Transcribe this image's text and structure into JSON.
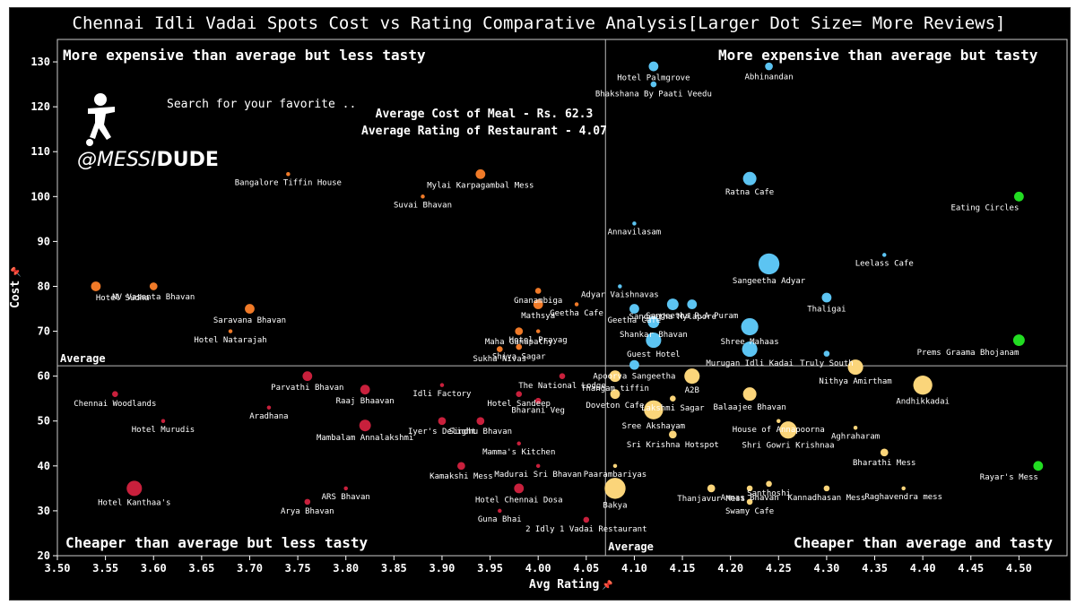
{
  "title": "Chennai Idli Vadai Spots Cost vs Rating Comparative Analysis[Larger Dot Size= More Reviews]",
  "branding": {
    "search_text": "Search for your favorite ..",
    "handle_prefix": "@MESSI",
    "handle_suffix": "DUDE"
  },
  "averages": {
    "cost_text": "Average Cost of Meal - Rs. 62.3",
    "rating_text": "Average Rating of Restaurant - 4.07",
    "avg_y_label": "Average",
    "avg_x_label": "Average"
  },
  "quadrants": {
    "top_left": "More expensive than average but less tasty",
    "top_right": "More expensive than average but tasty",
    "bottom_left": "Cheaper than average but less tasty",
    "bottom_right": "Cheaper than average and tasty"
  },
  "colors": {
    "top_left": "#f07a28",
    "top_right": "#5cc4f2",
    "bottom_left": "#c8203c",
    "bottom_right": "#fbd57a",
    "outlier": "#22dd22"
  },
  "chart_data": {
    "type": "scatter",
    "title": "Chennai Idli Vadai Spots Cost vs Rating Comparative Analysis[Larger Dot Size= More Reviews]",
    "xlabel": "Avg Rating",
    "ylabel": "Cost",
    "xlim": [
      3.5,
      4.55
    ],
    "ylim": [
      20,
      135
    ],
    "xticks": [
      "3.50",
      "3.55",
      "3.60",
      "3.65",
      "3.70",
      "3.75",
      "3.80",
      "3.85",
      "3.90",
      "3.95",
      "4.00",
      "4.05",
      "4.10",
      "4.15",
      "4.20",
      "4.25",
      "4.30",
      "4.35",
      "4.40",
      "4.45",
      "4.50"
    ],
    "yticks": [
      "20",
      "30",
      "40",
      "50",
      "60",
      "70",
      "80",
      "90",
      "100",
      "110",
      "120",
      "130"
    ],
    "avg_x": 4.07,
    "avg_y": 62.3,
    "grid": false,
    "points": [
      {
        "name": "Hotel Palmgrove",
        "x": 4.12,
        "y": 129,
        "size": 4,
        "group": "top_right"
      },
      {
        "name": "Abhinandan",
        "x": 4.24,
        "y": 129,
        "size": 3,
        "group": "top_right"
      },
      {
        "name": "Bhakshana By Paati Veedu",
        "x": 4.12,
        "y": 125,
        "size": 2,
        "group": "top_right"
      },
      {
        "name": "Ratna Cafe",
        "x": 4.22,
        "y": 104,
        "size": 6,
        "group": "top_right"
      },
      {
        "name": "Annavilasam",
        "x": 4.1,
        "y": 94,
        "size": 1,
        "group": "top_right"
      },
      {
        "name": "Sangeetha Adyar",
        "x": 4.24,
        "y": 85,
        "size": 10,
        "group": "top_right"
      },
      {
        "name": "Leelass Cafe",
        "x": 4.36,
        "y": 87,
        "size": 1,
        "group": "top_right"
      },
      {
        "name": "Adyar Vaishnavas",
        "x": 4.085,
        "y": 80,
        "size": 1,
        "group": "top_right"
      },
      {
        "name": "Thaligai",
        "x": 4.3,
        "y": 77.5,
        "size": 4,
        "group": "top_right"
      },
      {
        "name": "Sangeetha Mylapore",
        "x": 4.14,
        "y": 76,
        "size": 5,
        "group": "top_right"
      },
      {
        "name": "Sangeetha R.A Puram",
        "x": 4.16,
        "y": 76,
        "size": 4,
        "group": "top_right"
      },
      {
        "name": "Geetha Cafe",
        "x": 4.1,
        "y": 75,
        "size": 4,
        "group": "top_right"
      },
      {
        "name": "Shankar Bhavan",
        "x": 4.12,
        "y": 72,
        "size": 5,
        "group": "top_right"
      },
      {
        "name": "Shree Mahaas",
        "x": 4.22,
        "y": 71,
        "size": 8,
        "group": "top_right"
      },
      {
        "name": "Guest Hotel",
        "x": 4.12,
        "y": 68,
        "size": 7,
        "group": "top_right"
      },
      {
        "name": "Truly South",
        "x": 4.3,
        "y": 65,
        "size": 2,
        "group": "top_right"
      },
      {
        "name": "Murugan Idli Kadai",
        "x": 4.22,
        "y": 66,
        "size": 7,
        "group": "top_right"
      },
      {
        "name": "Apoorva Sangeetha",
        "x": 4.1,
        "y": 62.5,
        "size": 4,
        "group": "top_right"
      },
      {
        "name": "Eating Circles",
        "x": 4.5,
        "y": 100,
        "size": 4,
        "group": "outlier"
      },
      {
        "name": "Prems Graama Bhojanam",
        "x": 4.5,
        "y": 68,
        "size": 5,
        "group": "outlier"
      },
      {
        "name": "Rayar's Mess",
        "x": 4.52,
        "y": 40,
        "size": 4,
        "group": "outlier"
      },
      {
        "name": "Mylai Karpagambal Mess",
        "x": 3.94,
        "y": 105,
        "size": 4,
        "group": "top_left"
      },
      {
        "name": "Bangalore Tiffin House",
        "x": 3.74,
        "y": 105,
        "size": 1,
        "group": "top_left"
      },
      {
        "name": "Suvai Bhavan",
        "x": 3.88,
        "y": 100,
        "size": 1,
        "group": "top_left"
      },
      {
        "name": "Hotel Sudha",
        "x": 3.54,
        "y": 80,
        "size": 4,
        "group": "top_left"
      },
      {
        "name": "NV Vasanta Bhavan",
        "x": 3.6,
        "y": 80,
        "size": 3,
        "group": "top_left"
      },
      {
        "name": "Saravana Bhavan",
        "x": 3.7,
        "y": 75,
        "size": 4,
        "group": "top_left"
      },
      {
        "name": "Hotel Natarajah",
        "x": 3.68,
        "y": 70,
        "size": 1,
        "group": "top_left"
      },
      {
        "name": "Gnanambiga",
        "x": 4.0,
        "y": 79,
        "size": 2,
        "group": "top_left"
      },
      {
        "name": "Mathsya",
        "x": 4.0,
        "y": 76,
        "size": 4,
        "group": "top_left"
      },
      {
        "name": "Geetha Cafe",
        "x": 4.04,
        "y": 76,
        "size": 1,
        "group": "top_left"
      },
      {
        "name": "Maha Ganapathy",
        "x": 3.98,
        "y": 70,
        "size": 3,
        "group": "top_left"
      },
      {
        "name": "Hotel Prayag",
        "x": 4.0,
        "y": 70,
        "size": 1,
        "group": "top_left"
      },
      {
        "name": "Shiva Sagar",
        "x": 3.98,
        "y": 66.5,
        "size": 2,
        "group": "top_left"
      },
      {
        "name": "Sukha Nivas",
        "x": 3.96,
        "y": 66,
        "size": 2,
        "group": "top_left"
      },
      {
        "name": "Parvathi Bhavan",
        "x": 3.76,
        "y": 60,
        "size": 4,
        "group": "bottom_left"
      },
      {
        "name": "Chennai Woodlands",
        "x": 3.56,
        "y": 56,
        "size": 2,
        "group": "bottom_left"
      },
      {
        "name": "Raaj Bhaavan",
        "x": 3.82,
        "y": 57,
        "size": 4,
        "group": "bottom_left"
      },
      {
        "name": "Idli Factory",
        "x": 3.9,
        "y": 58,
        "size": 1,
        "group": "bottom_left"
      },
      {
        "name": "Hotel Sandeep",
        "x": 3.98,
        "y": 56,
        "size": 2,
        "group": "bottom_left"
      },
      {
        "name": "The National Lodge",
        "x": 4.025,
        "y": 60,
        "size": 2,
        "group": "bottom_left"
      },
      {
        "name": "Aradhana",
        "x": 3.72,
        "y": 53,
        "size": 1,
        "group": "bottom_left"
      },
      {
        "name": "Bharani Veg",
        "x": 4.0,
        "y": 54.5,
        "size": 2,
        "group": "bottom_left"
      },
      {
        "name": "Hotel Murudis",
        "x": 3.61,
        "y": 50,
        "size": 1,
        "group": "bottom_left"
      },
      {
        "name": "Sindhu Bhavan",
        "x": 3.94,
        "y": 50,
        "size": 3,
        "group": "bottom_left"
      },
      {
        "name": "Mambalam Annalakshmi",
        "x": 3.82,
        "y": 49,
        "size": 5,
        "group": "bottom_left"
      },
      {
        "name": "Mamma's Kitchen",
        "x": 3.98,
        "y": 45,
        "size": 1,
        "group": "bottom_left"
      },
      {
        "name": "Iyer's Delight",
        "x": 3.9,
        "y": 50,
        "size": 3,
        "group": "bottom_left"
      },
      {
        "name": "Kamakshi Mess",
        "x": 3.92,
        "y": 40,
        "size": 3,
        "group": "bottom_left"
      },
      {
        "name": "Madurai Sri Bhavan",
        "x": 4.0,
        "y": 40,
        "size": 1,
        "group": "bottom_left"
      },
      {
        "name": "ARS Bhavan",
        "x": 3.8,
        "y": 35,
        "size": 1,
        "group": "bottom_left"
      },
      {
        "name": "Hotel Kanthaa's",
        "x": 3.58,
        "y": 35,
        "size": 7,
        "group": "bottom_left"
      },
      {
        "name": "Arya Bhavan",
        "x": 3.76,
        "y": 32,
        "size": 2,
        "group": "bottom_left"
      },
      {
        "name": "Hotel Chennai Dosa",
        "x": 3.98,
        "y": 35,
        "size": 4,
        "group": "bottom_left"
      },
      {
        "name": "Guna Bhai",
        "x": 3.96,
        "y": 30,
        "size": 1,
        "group": "bottom_left"
      },
      {
        "name": "2 Idly 1 Vadai Restaurant",
        "x": 4.05,
        "y": 28,
        "size": 2,
        "group": "bottom_left"
      },
      {
        "name": "Thangam tiffin",
        "x": 4.08,
        "y": 60,
        "size": 5,
        "group": "bottom_right"
      },
      {
        "name": "A2B",
        "x": 4.16,
        "y": 60,
        "size": 7,
        "group": "bottom_right"
      },
      {
        "name": "Doveton Cafe",
        "x": 4.08,
        "y": 56,
        "size": 4,
        "group": "bottom_right"
      },
      {
        "name": "Lakshmi Sagar",
        "x": 4.14,
        "y": 55,
        "size": 2,
        "group": "bottom_right"
      },
      {
        "name": "Balaajee Bhavan",
        "x": 4.22,
        "y": 56,
        "size": 6,
        "group": "bottom_right"
      },
      {
        "name": "Nithya Amirtham",
        "x": 4.33,
        "y": 62,
        "size": 7,
        "group": "bottom_right"
      },
      {
        "name": "Andhikkadai",
        "x": 4.4,
        "y": 58,
        "size": 9,
        "group": "bottom_right"
      },
      {
        "name": "Sree Akshayam",
        "x": 4.12,
        "y": 52.5,
        "size": 9,
        "group": "bottom_right"
      },
      {
        "name": "House of Annapoorna",
        "x": 4.25,
        "y": 50,
        "size": 1,
        "group": "bottom_right"
      },
      {
        "name": "Shri Gowri Krishnaa",
        "x": 4.26,
        "y": 48,
        "size": 8,
        "group": "bottom_right"
      },
      {
        "name": "Aghraharam",
        "x": 4.33,
        "y": 48.5,
        "size": 1,
        "group": "bottom_right"
      },
      {
        "name": "Sri Krishna Hotspot",
        "x": 4.14,
        "y": 47,
        "size": 3,
        "group": "bottom_right"
      },
      {
        "name": "Bharathi Mess",
        "x": 4.36,
        "y": 43,
        "size": 3,
        "group": "bottom_right"
      },
      {
        "name": "Paarambariyas",
        "x": 4.08,
        "y": 40,
        "size": 1,
        "group": "bottom_right"
      },
      {
        "name": "Annas Bhavan",
        "x": 4.22,
        "y": 35,
        "size": 2,
        "group": "bottom_right"
      },
      {
        "name": "Santhoshi",
        "x": 4.24,
        "y": 36,
        "size": 2,
        "group": "bottom_right"
      },
      {
        "name": "Thanjavur Mess",
        "x": 4.18,
        "y": 35,
        "size": 3,
        "group": "bottom_right"
      },
      {
        "name": "Kannadhasan Mess",
        "x": 4.3,
        "y": 35,
        "size": 2,
        "group": "bottom_right"
      },
      {
        "name": "Raghavendra mess",
        "x": 4.38,
        "y": 35,
        "size": 1,
        "group": "bottom_right"
      },
      {
        "name": "Swamy Cafe",
        "x": 4.22,
        "y": 32,
        "size": 2,
        "group": "bottom_right"
      },
      {
        "name": "Bakya",
        "x": 4.08,
        "y": 35,
        "size": 10,
        "group": "bottom_right"
      }
    ]
  }
}
